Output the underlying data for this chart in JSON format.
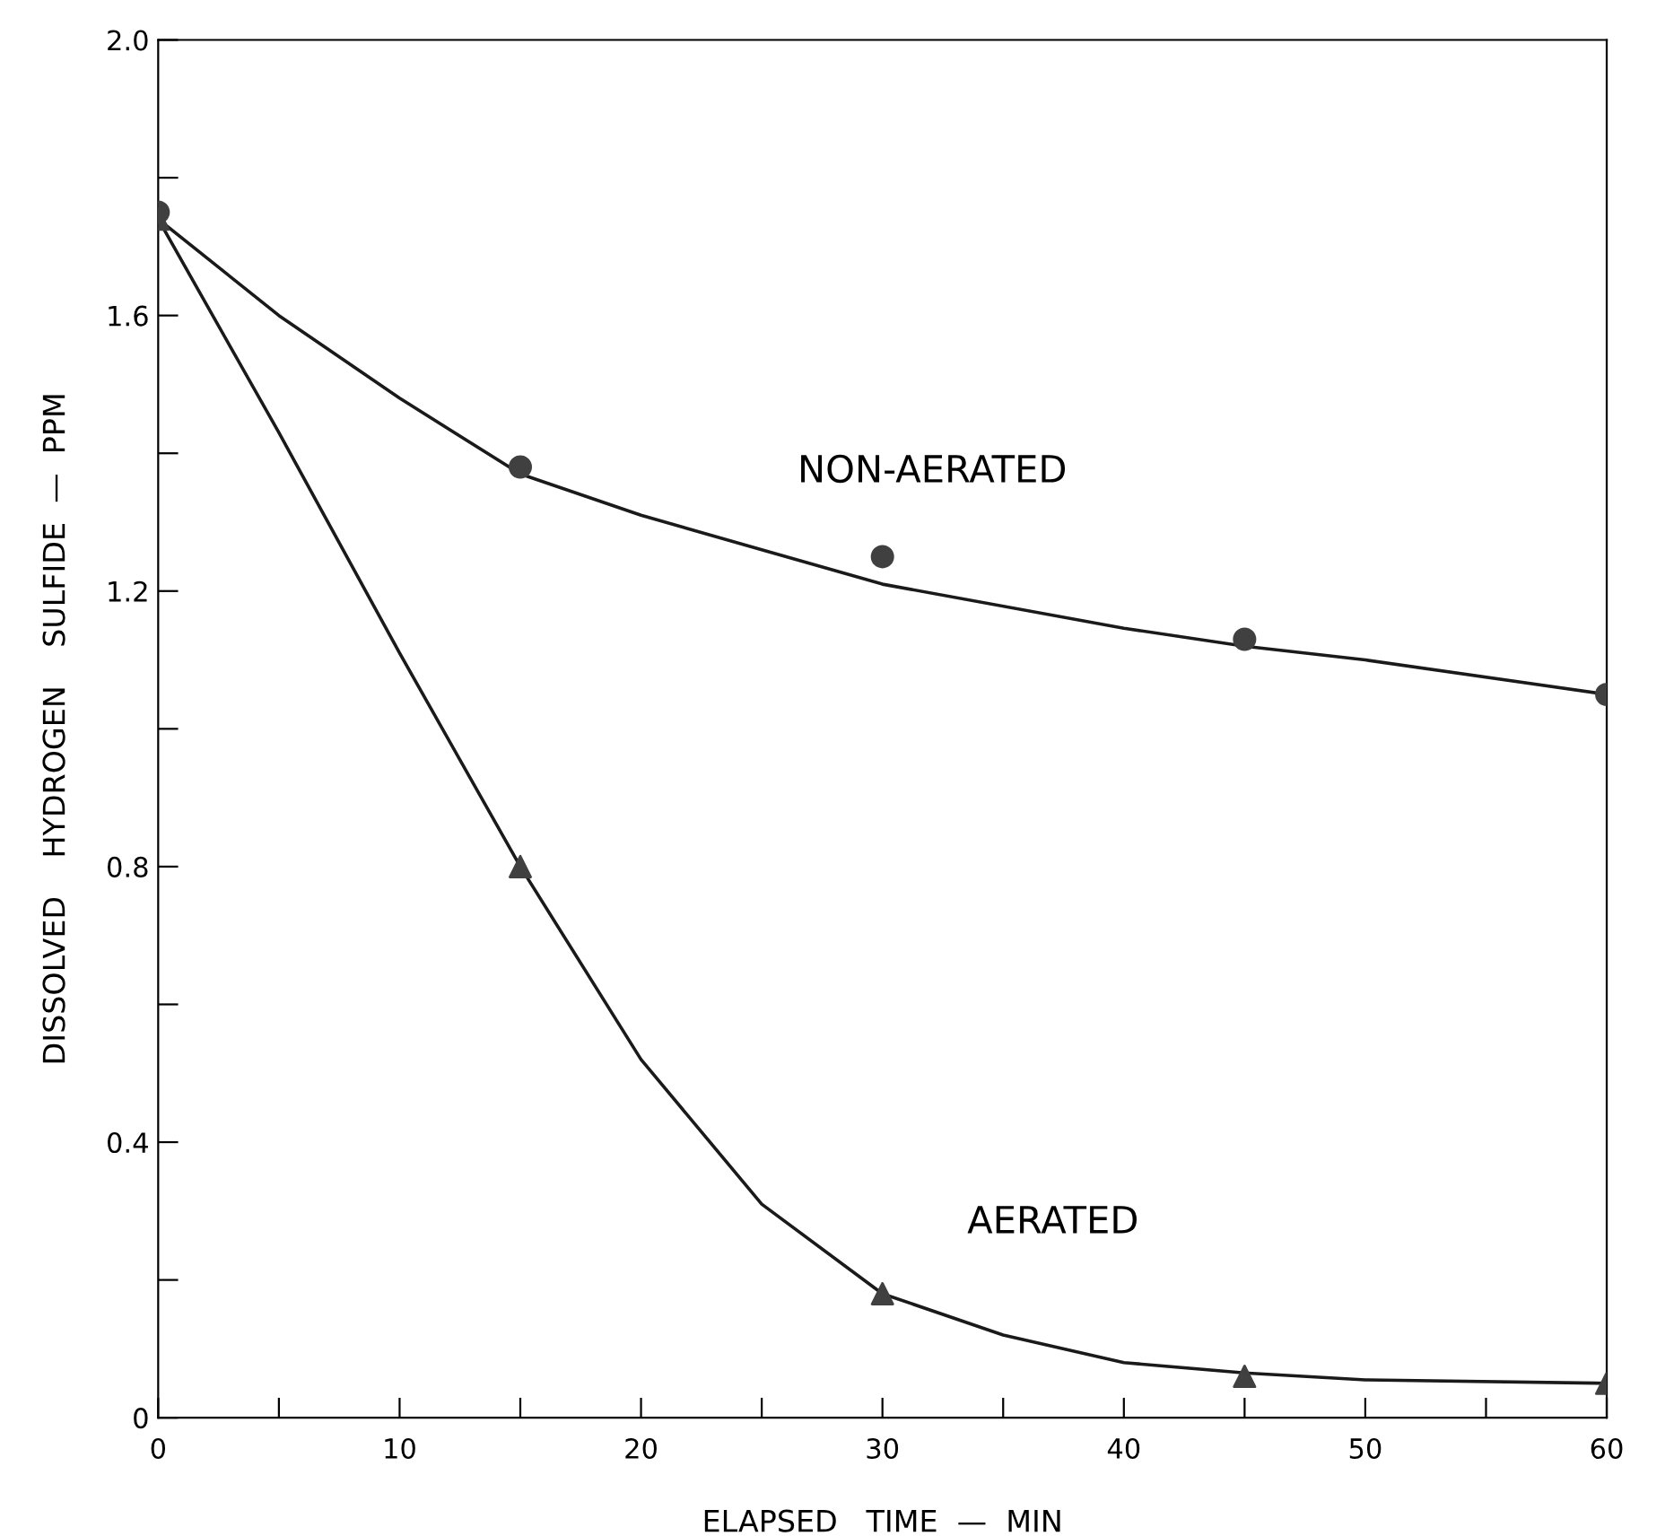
{
  "chart_data": {
    "type": "scatter",
    "xlabel": "ELAPSED   TIME  —  MIN",
    "ylabel": "DISSOLVED    HYDROGEN    SULFIDE  —  PPM",
    "xlim": [
      0,
      60
    ],
    "ylim": [
      0,
      2.0
    ],
    "xticks": [
      0,
      {
        "value": 5,
        "label": null
      },
      10,
      {
        "value": 15,
        "label": null
      },
      20,
      {
        "value": 25,
        "label": null
      },
      30,
      {
        "value": 35,
        "label": null
      },
      40,
      {
        "value": 45,
        "label": null
      },
      50,
      {
        "value": 55,
        "label": null
      },
      60
    ],
    "yticks": [
      0,
      {
        "value": 0.2,
        "label": null
      },
      0.4,
      {
        "value": 0.6,
        "label": null
      },
      0.8,
      {
        "value": 1.0,
        "label": null
      },
      1.2,
      {
        "value": 1.4,
        "label": null
      },
      1.6,
      {
        "value": 1.8,
        "label": null
      },
      {
        "value": 2.0,
        "label": "2.0"
      }
    ],
    "grid": false,
    "legend": false,
    "series": [
      {
        "type": "line",
        "name": "NON-AERATED",
        "color": "#1a1a1a",
        "marker": "none",
        "line_style": "solid",
        "x": [
          0,
          5,
          10,
          15,
          20,
          25,
          30,
          40,
          45,
          50,
          60
        ],
        "values": [
          1.74,
          1.6,
          1.48,
          1.37,
          1.31,
          1.26,
          1.21,
          1.146,
          1.12,
          1.1,
          1.05
        ]
      },
      {
        "type": "line",
        "name": "AERATED",
        "color": "#1a1a1a",
        "marker": "none",
        "line_style": "solid",
        "x": [
          0,
          5,
          10,
          15,
          20,
          25,
          30,
          35,
          40,
          45,
          50,
          60
        ],
        "values": [
          1.74,
          1.43,
          1.11,
          0.8,
          0.52,
          0.31,
          0.18,
          0.12,
          0.08,
          0.065,
          0.055,
          0.05
        ]
      },
      {
        "color": "#404040",
        "marker": "circle",
        "x": [
          0,
          15,
          30,
          45,
          60
        ],
        "values": [
          1.75,
          1.38,
          1.25,
          1.13,
          1.05
        ]
      },
      {
        "color": "#404040",
        "marker": "triangle",
        "x": [
          0,
          15,
          30,
          45,
          60
        ],
        "values": [
          1.74,
          0.8,
          0.18,
          0.06,
          0.05
        ]
      }
    ]
  }
}
